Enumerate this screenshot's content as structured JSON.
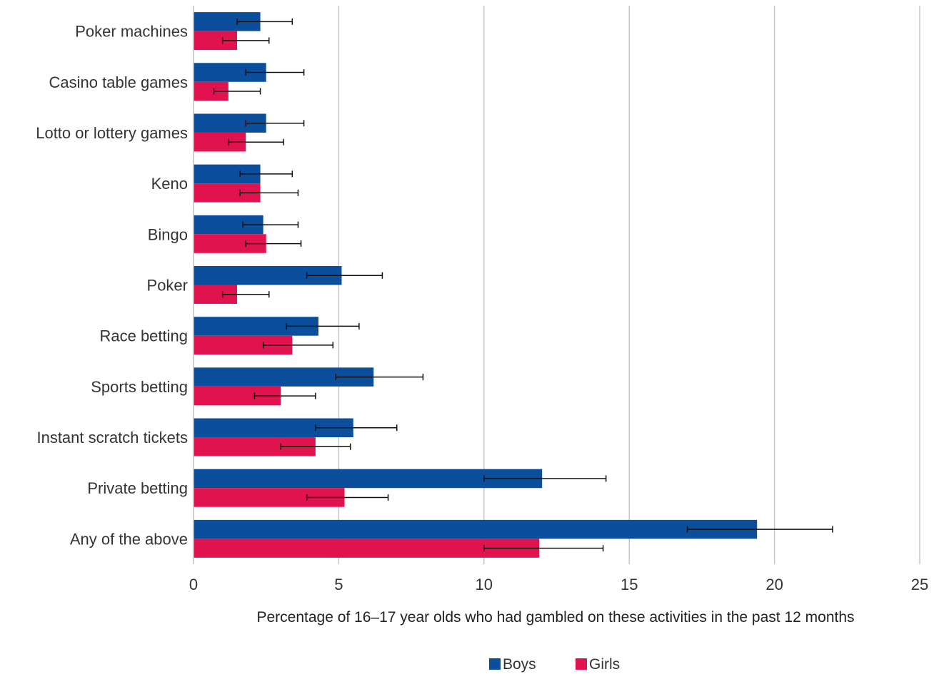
{
  "chart_data": {
    "type": "bar",
    "orientation": "horizontal",
    "categories": [
      "Poker machines",
      "Casino table games",
      "Lotto or lottery games",
      "Keno",
      "Bingo",
      "Poker",
      "Race betting",
      "Sports betting",
      "Instant scratch tickets",
      "Private betting",
      "Any of the above"
    ],
    "series": [
      {
        "name": "Boys",
        "color": "#0b4f9c",
        "values": [
          2.3,
          2.5,
          2.5,
          2.3,
          2.4,
          5.1,
          4.3,
          6.2,
          5.5,
          12.0,
          19.4
        ],
        "error_low": [
          1.5,
          1.8,
          1.8,
          1.6,
          1.7,
          3.9,
          3.2,
          4.9,
          4.2,
          10.0,
          17.0
        ],
        "error_high": [
          3.4,
          3.8,
          3.8,
          3.4,
          3.6,
          6.5,
          5.7,
          7.9,
          7.0,
          14.2,
          22.0
        ]
      },
      {
        "name": "Girls",
        "color": "#e0134f",
        "values": [
          1.5,
          1.2,
          1.8,
          2.3,
          2.5,
          1.5,
          3.4,
          3.0,
          4.2,
          5.2,
          11.9
        ],
        "error_low": [
          1.0,
          0.7,
          1.2,
          1.6,
          1.8,
          1.0,
          2.4,
          2.1,
          3.0,
          3.9,
          10.0
        ],
        "error_high": [
          2.6,
          2.3,
          3.1,
          3.6,
          3.7,
          2.6,
          4.8,
          4.2,
          5.4,
          6.7,
          14.1
        ]
      }
    ],
    "xlabel": "Percentage of 16–17 year olds who had gambled on these activities in the past 12 months",
    "ylabel": "",
    "xlim": [
      0,
      25
    ],
    "xticks": [
      0,
      5,
      10,
      15,
      20,
      25
    ],
    "grid": "vertical",
    "legend": "bottom-center",
    "error_bars": true
  }
}
